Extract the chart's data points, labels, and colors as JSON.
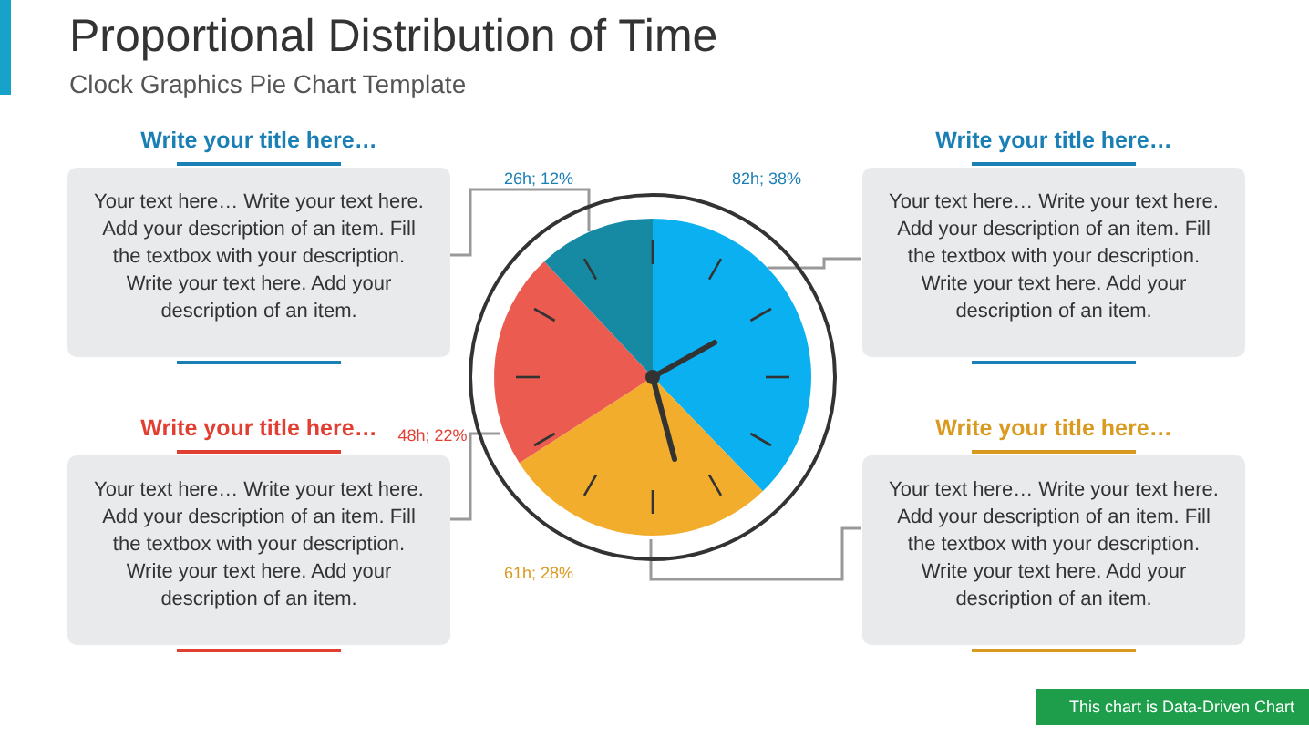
{
  "chart_data": {
    "type": "pie",
    "title": "Proportional Distribution of Time",
    "subtitle": "Clock Graphics Pie Chart Template",
    "categories": [
      null,
      null,
      null,
      null
    ],
    "values": [
      82,
      61,
      48,
      26
    ],
    "colors": [
      "#0ab0f0",
      "#f2ad2c",
      "#ec5b4f",
      "#168aa3"
    ],
    "value_labels": [
      "82h; 38%",
      "61h; 28%",
      "48h; 22%",
      "26h; 12%"
    ],
    "legend": false,
    "annotations": [
      "Write your title here…",
      "Your text here… Write your text here. Add your description of an item. Fill the textbox with your description. Write your text here. Add your description of an item.",
      "Write your title here…",
      "Your text here… Write your text here. Add your description of an item. Fill the textbox with your description. Write your text here. Add your description of an item.",
      "Write your title here…",
      "Your text here… Write your text here. Add your description of an item. Fill the textbox with your description. Write your text here. Add your description of an item.",
      "Write your title here…",
      "Your text here… Write your text here. Add your description of an item. Fill the textbox with your description. Write your text here. Add your description of an item.",
      "This chart is Data-Driven Chart"
    ]
  }
}
